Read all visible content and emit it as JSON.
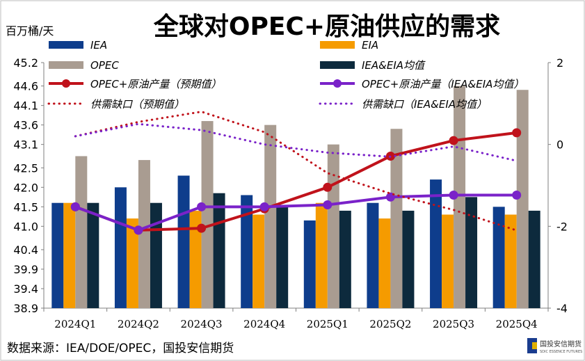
{
  "header": {
    "title": "全球对OPEC+原油供应的需求",
    "unit": "百万桶/天"
  },
  "footer": {
    "source": "数据来源：IEA/DOE/OPEC，国投安信期货"
  },
  "logo": {
    "name": "国投安信期货",
    "sub": "SDIC ESSENCE FUTURES"
  },
  "colors": {
    "IEA": "#0e3d8c",
    "EIA": "#f59b00",
    "OPEC": "#a99c91",
    "AVG": "#0d2a3d",
    "red": "#c0121b",
    "purple": "#7a22c9"
  },
  "legend": {
    "IEA": "IEA",
    "EIA": "EIA",
    "OPEC": "OPEC",
    "AVG": "IEA&EIA均值",
    "prod_forecast": "OPEC+原油产量（预期值）",
    "prod_avg": "OPEC+原油产量（IEA&EIA均值）",
    "gap_forecast": "供需缺口（预期值）",
    "gap_avg": "供需缺口（IEA&EIA均值）"
  },
  "chart_data": {
    "type": "bar",
    "categories": [
      "2024Q1",
      "2024Q2",
      "2024Q3",
      "2024Q4",
      "2025Q1",
      "2025Q2",
      "2025Q3",
      "2025Q4"
    ],
    "left_axis": {
      "min": 38.9,
      "max": 45.2,
      "ticks": [
        "45.2",
        "44.6",
        "44.1",
        "43.6",
        "43.1",
        "42.5",
        "42.0",
        "41.5",
        "41.0",
        "40.4",
        "39.9",
        "39.4",
        "38.9"
      ]
    },
    "right_axis": {
      "min": -4,
      "max": 2,
      "ticks": [
        "2",
        "0",
        "-2",
        "-4"
      ]
    },
    "bars": [
      {
        "key": "IEA",
        "values": [
          41.6,
          42.0,
          42.3,
          41.8,
          41.15,
          41.6,
          42.2,
          41.5
        ]
      },
      {
        "key": "EIA",
        "values": [
          41.6,
          41.2,
          41.4,
          41.3,
          41.6,
          41.2,
          41.3,
          41.3
        ]
      },
      {
        "key": "OPEC",
        "values": [
          42.8,
          42.7,
          43.7,
          43.6,
          43.1,
          43.5,
          44.6,
          44.5
        ]
      },
      {
        "key": "AVG",
        "values": [
          41.6,
          41.6,
          41.85,
          41.55,
          41.4,
          41.4,
          41.75,
          41.4
        ]
      }
    ],
    "lines": [
      {
        "key": "prod_forecast",
        "style": "solid",
        "color": "red",
        "values": [
          41.5,
          40.9,
          40.95,
          41.45,
          42.0,
          42.8,
          43.2,
          43.4
        ]
      },
      {
        "key": "prod_avg",
        "style": "solid",
        "color": "purple",
        "values": [
          41.5,
          40.9,
          41.5,
          41.5,
          41.55,
          41.75,
          41.8,
          41.8
        ]
      },
      {
        "key": "gap_forecast",
        "style": "dotted",
        "color": "red",
        "axis": "right",
        "values": [
          0.2,
          0.55,
          0.8,
          0.3,
          -0.7,
          -1.2,
          -1.6,
          -2.1
        ]
      },
      {
        "key": "gap_avg",
        "style": "dotted",
        "color": "purple",
        "axis": "right",
        "values": [
          0.2,
          0.5,
          0.35,
          0.0,
          -0.2,
          -0.3,
          -0.05,
          -0.4
        ]
      }
    ]
  }
}
